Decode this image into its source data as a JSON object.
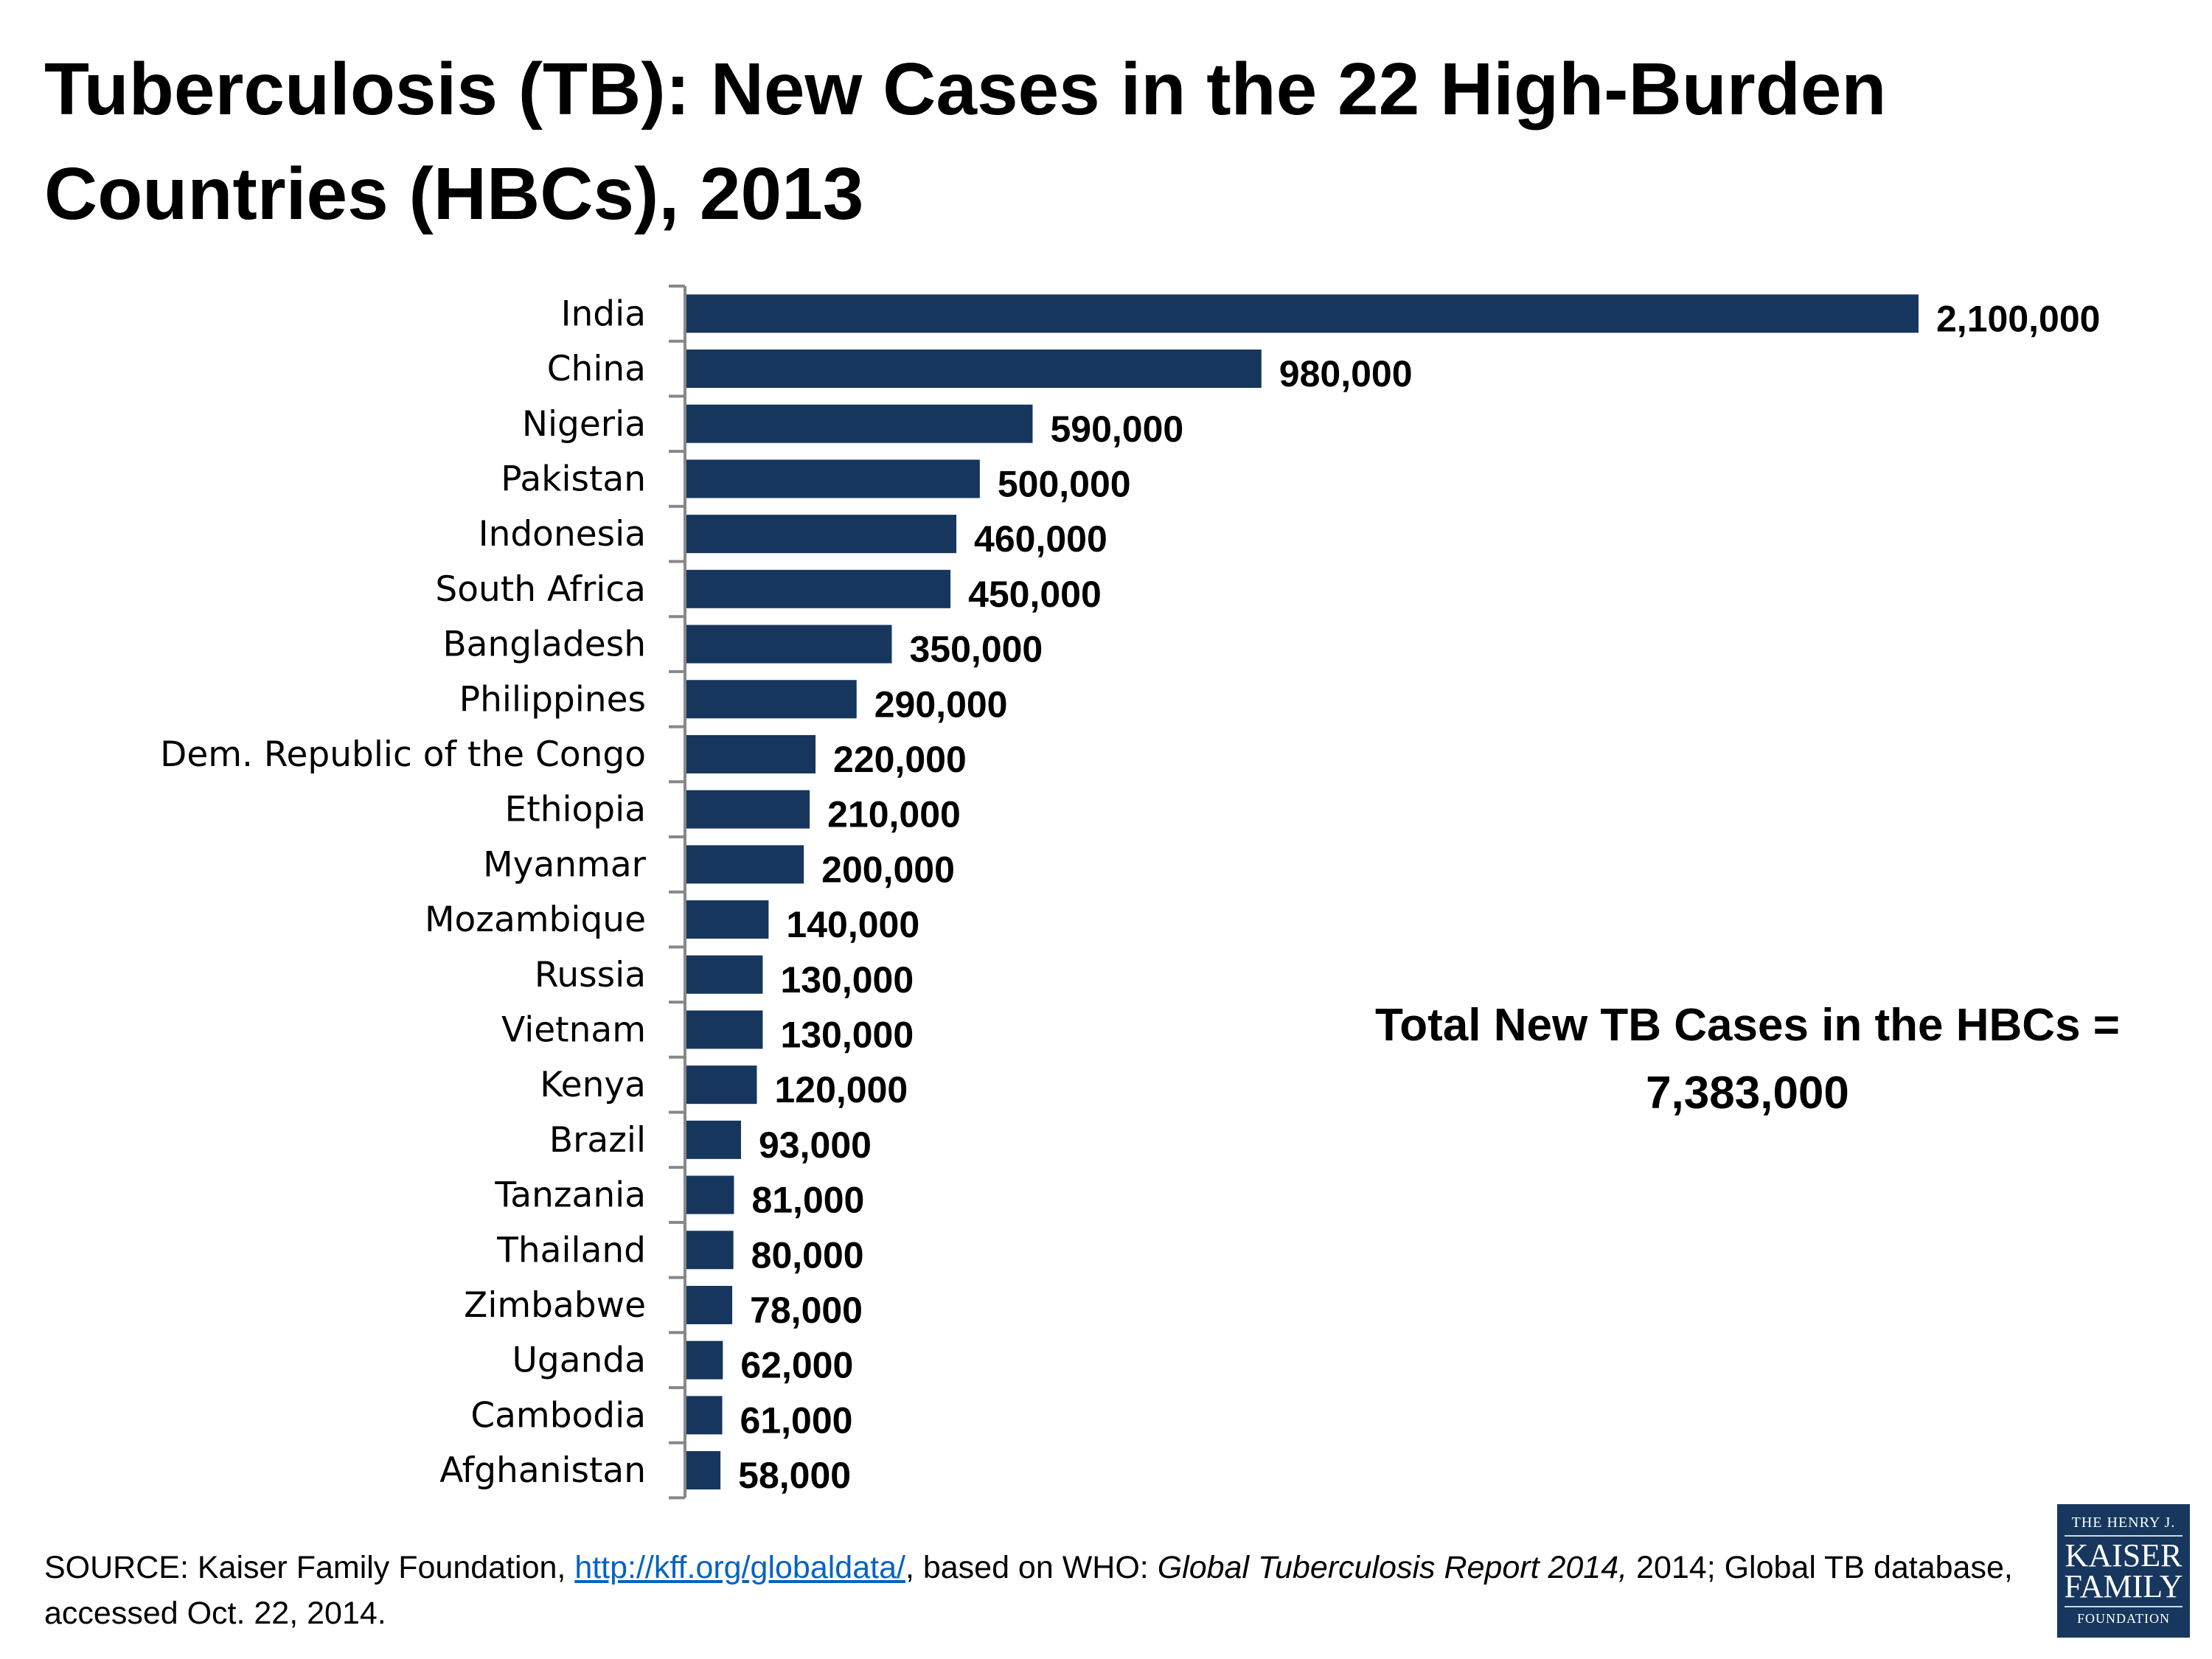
{
  "title": "Tuberculosis (TB): New Cases in the 22 High-Burden Countries (HBCs), 2013",
  "chart_data": {
    "type": "bar",
    "orientation": "horizontal",
    "title": "Tuberculosis (TB): New Cases in the 22 High-Burden Countries (HBCs), 2013",
    "categories": [
      "India",
      "China",
      "Nigeria",
      "Pakistan",
      "Indonesia",
      "South Africa",
      "Bangladesh",
      "Philippines",
      "Dem. Republic of the Congo",
      "Ethiopia",
      "Myanmar",
      "Mozambique",
      "Russia",
      "Vietnam",
      "Kenya",
      "Brazil",
      "Tanzania",
      "Thailand",
      "Zimbabwe",
      "Uganda",
      "Cambodia",
      "Afghanistan"
    ],
    "values": [
      2100000,
      980000,
      590000,
      500000,
      460000,
      450000,
      350000,
      290000,
      220000,
      210000,
      200000,
      140000,
      130000,
      130000,
      120000,
      93000,
      81000,
      80000,
      78000,
      62000,
      61000,
      58000
    ],
    "data_labels": [
      "2,100,000",
      "980,000",
      "590,000",
      "500,000",
      "460,000",
      "450,000",
      "350,000",
      "290,000",
      "220,000",
      "210,000",
      "200,000",
      "140,000",
      "130,000",
      "130,000",
      "120,000",
      "93,000",
      "81,000",
      "80,000",
      "78,000",
      "62,000",
      "61,000",
      "58,000"
    ],
    "xlim": [
      0,
      2100000
    ],
    "grid": false,
    "bar_color": "#17365d",
    "xlabel": "",
    "ylabel": ""
  },
  "annotation": {
    "line1": "Total New TB Cases in the HBCs =",
    "line2": "7,383,000"
  },
  "source": {
    "prefix": "SOURCE: Kaiser Family Foundation, ",
    "link": "http://kff.org/globaldata/",
    "middle": ", based on WHO: ",
    "report": "Global Tuberculosis Report 2014,",
    "suffix": " 2014; Global TB database, accessed Oct. 22, 2014."
  },
  "logo": {
    "line1": "THE HENRY J.",
    "line2": "KAISER",
    "line3": "FAMILY",
    "line4": "FOUNDATION"
  }
}
